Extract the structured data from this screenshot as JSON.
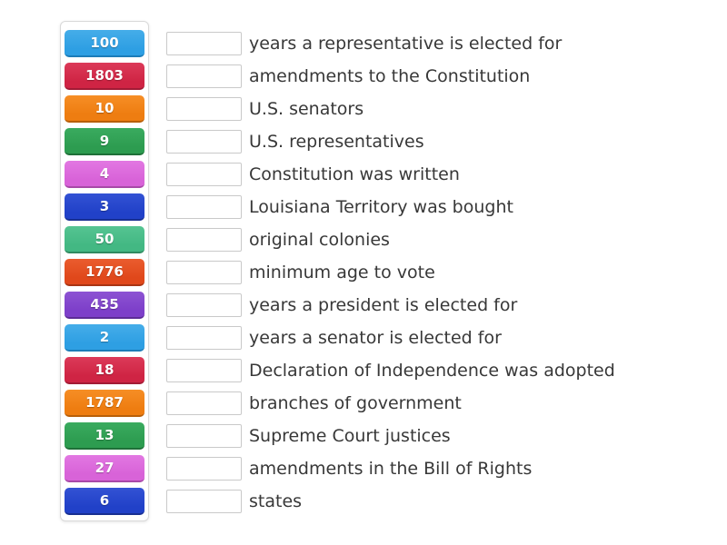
{
  "activity": {
    "type": "match-up",
    "background_color": "#ffffff",
    "panel_border_color": "#d9d9d9",
    "drop_box_border_color": "#c9c9c9",
    "clue_text_color": "#383838",
    "tile_text_color": "#ffffff"
  },
  "rows": [
    {
      "value": "100",
      "label": "years a representative is elected for",
      "color": "#2e9fe3",
      "color_light": "#45ade9",
      "color_dark": "#1c7cb8"
    },
    {
      "value": "1803",
      "label": "amendments to the Constitution",
      "color": "#cf2444",
      "color_light": "#dc3a59",
      "color_dark": "#a21b35"
    },
    {
      "value": "10",
      "label": "U.S. senators",
      "color": "#ee7d11",
      "color_light": "#f68e26",
      "color_dark": "#b85f0a"
    },
    {
      "value": "9",
      "label": "U.S. representatives",
      "color": "#2d9c50",
      "color_light": "#3aab5f",
      "color_dark": "#1f7038"
    },
    {
      "value": "4",
      "label": "Constitution was written",
      "color": "#d863d8",
      "color_light": "#e278e2",
      "color_dark": "#a849a8"
    },
    {
      "value": "3",
      "label": "Louisiana Territory was bought",
      "color": "#2141c8",
      "color_light": "#3352d4",
      "color_dark": "#182f92"
    },
    {
      "value": "50",
      "label": "original colonies",
      "color": "#43b883",
      "color_light": "#55c492",
      "color_dark": "#2f8a60"
    },
    {
      "value": "1776",
      "label": "minimum age to vote",
      "color": "#e0481b",
      "color_light": "#ea5c2e",
      "color_dark": "#a93413"
    },
    {
      "value": "435",
      "label": "years a president is elected for",
      "color": "#7d3fc9",
      "color_light": "#8d53d3",
      "color_dark": "#5c2c96"
    },
    {
      "value": "2",
      "label": "years a senator is elected for",
      "color": "#2e9fe3",
      "color_light": "#45ade9",
      "color_dark": "#1c7cb8"
    },
    {
      "value": "18",
      "label": "Declaration of Independence was adopted",
      "color": "#cf2444",
      "color_light": "#dc3a59",
      "color_dark": "#a21b35"
    },
    {
      "value": "1787",
      "label": "branches of government",
      "color": "#ee7d11",
      "color_light": "#f68e26",
      "color_dark": "#b85f0a"
    },
    {
      "value": "13",
      "label": "Supreme Court justices",
      "color": "#2d9c50",
      "color_light": "#3aab5f",
      "color_dark": "#1f7038"
    },
    {
      "value": "27",
      "label": "amendments in the Bill of Rights",
      "color": "#d863d8",
      "color_light": "#e278e2",
      "color_dark": "#a849a8"
    },
    {
      "value": "6",
      "label": "states",
      "color": "#2141c8",
      "color_light": "#3352d4",
      "color_dark": "#182f92"
    }
  ]
}
